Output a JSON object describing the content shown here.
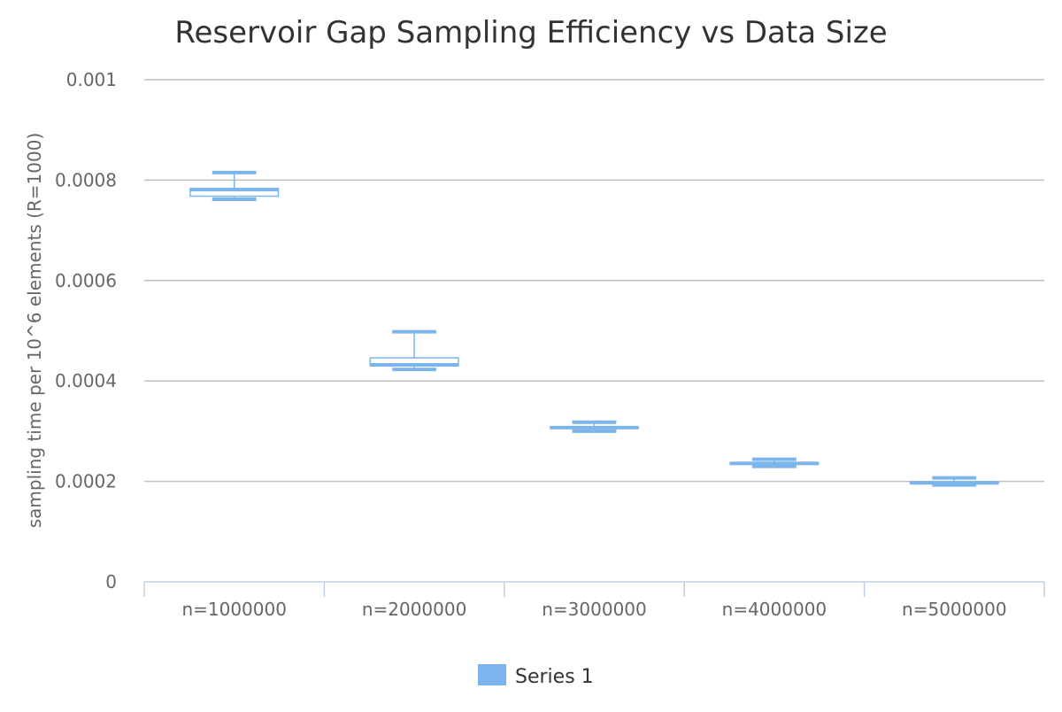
{
  "chart_data": {
    "type": "boxplot",
    "title": "Reservoir Gap Sampling Efficiency vs Data Size",
    "xlabel": "",
    "ylabel": "sampling time per 10^6 elements (R=1000)",
    "ylim": [
      0,
      0.001
    ],
    "yticks": [
      0,
      0.0002,
      0.0004,
      0.0006,
      0.0008,
      0.001
    ],
    "ytick_labels": [
      "0",
      "0.0002",
      "0.0004",
      "0.0006",
      "0.0008",
      "0.001"
    ],
    "categories": [
      "n=1000000",
      "n=2000000",
      "n=3000000",
      "n=4000000",
      "n=5000000"
    ],
    "grid": true,
    "legend_position": "bottom-center",
    "series": [
      {
        "name": "Series 1",
        "color": "#7cb5ec",
        "boxes": [
          {
            "low": 0.000762,
            "q1": 0.000768,
            "median": 0.000781,
            "q3": 0.000783,
            "high": 0.000815
          },
          {
            "low": 0.000423,
            "q1": 0.00043,
            "median": 0.000432,
            "q3": 0.000446,
            "high": 0.000498
          },
          {
            "low": 0.0003,
            "q1": 0.000306,
            "median": 0.000307,
            "q3": 0.000308,
            "high": 0.000318
          },
          {
            "low": 0.00023,
            "q1": 0.000234,
            "median": 0.000236,
            "q3": 0.000237,
            "high": 0.000244
          },
          {
            "low": 0.000193,
            "q1": 0.000196,
            "median": 0.000197,
            "q3": 0.000199,
            "high": 0.000207
          }
        ]
      }
    ]
  }
}
